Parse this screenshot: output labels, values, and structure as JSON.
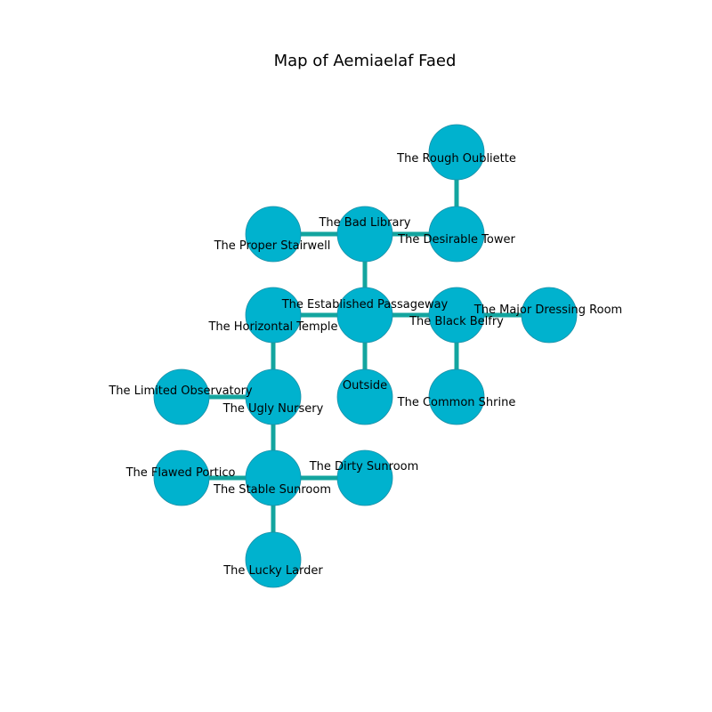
{
  "title": "Map of Aemiaelaf Faed",
  "colors": {
    "node_fill": "#00b2ce",
    "node_stroke": "#1a8fa6",
    "edge": "#13a59f"
  },
  "rooms": [
    {
      "id": "rough_oubliette",
      "label": "The Rough Oubliette"
    },
    {
      "id": "bad_library",
      "label": "The Bad Library"
    },
    {
      "id": "desirable_tower",
      "label": "The Desirable Tower"
    },
    {
      "id": "proper_stairwell",
      "label": "The Proper Stairwell"
    },
    {
      "id": "established_passageway",
      "label": "The Established Passageway"
    },
    {
      "id": "horizontal_temple",
      "label": "The Horizontal Temple"
    },
    {
      "id": "black_belfry",
      "label": "The Black Belfry"
    },
    {
      "id": "major_dressing_room",
      "label": "The Major Dressing Room"
    },
    {
      "id": "limited_observatory",
      "label": "The Limited Observatory"
    },
    {
      "id": "ugly_nursery",
      "label": "The Ugly Nursery"
    },
    {
      "id": "outside",
      "label": "Outside"
    },
    {
      "id": "common_shrine",
      "label": "The Common Shrine"
    },
    {
      "id": "flawed_portico",
      "label": "The Flawed Portico"
    },
    {
      "id": "stable_sunroom",
      "label": "The Stable Sunroom"
    },
    {
      "id": "dirty_sunroom",
      "label": "The Dirty Sunroom"
    },
    {
      "id": "lucky_larder",
      "label": "The Lucky Larder"
    }
  ],
  "connections": [
    [
      "rough_oubliette",
      "desirable_tower"
    ],
    [
      "bad_library",
      "desirable_tower"
    ],
    [
      "proper_stairwell",
      "bad_library"
    ],
    [
      "bad_library",
      "established_passageway"
    ],
    [
      "horizontal_temple",
      "established_passageway"
    ],
    [
      "established_passageway",
      "black_belfry"
    ],
    [
      "black_belfry",
      "major_dressing_room"
    ],
    [
      "established_passageway",
      "outside"
    ],
    [
      "black_belfry",
      "common_shrine"
    ],
    [
      "horizontal_temple",
      "ugly_nursery"
    ],
    [
      "limited_observatory",
      "ugly_nursery"
    ],
    [
      "ugly_nursery",
      "stable_sunroom"
    ],
    [
      "flawed_portico",
      "stable_sunroom"
    ],
    [
      "stable_sunroom",
      "dirty_sunroom"
    ],
    [
      "stable_sunroom",
      "lucky_larder"
    ]
  ]
}
